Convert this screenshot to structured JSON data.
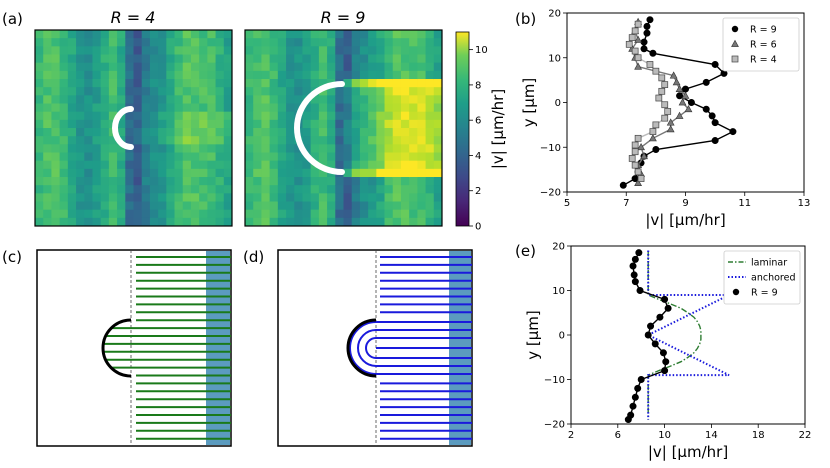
{
  "panel_labels": {
    "a": "(a)",
    "b": "(b)",
    "c": "(c)",
    "d": "(d)",
    "e": "(e)"
  },
  "heatmap_titles": {
    "left": "R = 4",
    "right": "R = 9"
  },
  "colorbar": {
    "label": "|v| [μm/hr]",
    "range": [
      0,
      11
    ],
    "ticks": [
      "0",
      "2",
      "4",
      "6",
      "8",
      "10"
    ],
    "colormap": "viridis"
  },
  "schematics": {
    "c": {
      "line_color": "#1a7a1a",
      "band_color": "#5b9bbf"
    },
    "d": {
      "line_color": "#1a1adc",
      "band_color": "#5b9bbf"
    }
  },
  "chart_data": [
    {
      "panel": "b",
      "type": "line",
      "xlabel": "|v| [μm/hr]",
      "ylabel": "y [μm]",
      "xlim": [
        5,
        13
      ],
      "ylim": [
        -20,
        20
      ],
      "xticks": [
        "5",
        "7",
        "9",
        "11",
        "13"
      ],
      "yticks": [
        "−20",
        "−10",
        "0",
        "10",
        "20"
      ],
      "legend_position": "top-right",
      "series": [
        {
          "name": "R = 9",
          "color": "#000000",
          "marker": "circle",
          "points": [
            [
              7.8,
              18.5
            ],
            [
              7.7,
              17.0
            ],
            [
              7.7,
              15.5
            ],
            [
              7.6,
              13.5
            ],
            [
              7.6,
              12.0
            ],
            [
              7.9,
              11.0
            ],
            [
              10.0,
              8.5
            ],
            [
              10.3,
              6.5
            ],
            [
              9.7,
              4.5
            ],
            [
              9.0,
              3.0
            ],
            [
              8.8,
              1.5
            ],
            [
              9.2,
              0.0
            ],
            [
              9.7,
              -1.5
            ],
            [
              9.9,
              -3.0
            ],
            [
              10.0,
              -4.5
            ],
            [
              10.6,
              -6.5
            ],
            [
              10.0,
              -8.5
            ],
            [
              8.0,
              -10.5
            ],
            [
              7.6,
              -12.0
            ],
            [
              7.5,
              -13.5
            ],
            [
              7.4,
              -15.5
            ],
            [
              7.3,
              -17.0
            ],
            [
              6.9,
              -18.5
            ]
          ]
        },
        {
          "name": "R = 6",
          "color": "#777777",
          "marker": "triangle",
          "points": [
            [
              7.4,
              18.0
            ],
            [
              7.3,
              16.0
            ],
            [
              7.4,
              14.0
            ],
            [
              7.2,
              12.0
            ],
            [
              7.3,
              10.0
            ],
            [
              7.4,
              8.0
            ],
            [
              8.6,
              6.0
            ],
            [
              8.7,
              4.5
            ],
            [
              8.8,
              3.0
            ],
            [
              9.0,
              1.5
            ],
            [
              8.9,
              0.0
            ],
            [
              9.1,
              -1.5
            ],
            [
              8.8,
              -3.0
            ],
            [
              8.5,
              -4.5
            ],
            [
              8.5,
              -6.0
            ],
            [
              7.9,
              -8.0
            ],
            [
              7.5,
              -10.0
            ],
            [
              7.6,
              -12.0
            ],
            [
              7.4,
              -14.0
            ],
            [
              7.5,
              -16.0
            ],
            [
              7.4,
              -18.0
            ]
          ]
        },
        {
          "name": "R = 4",
          "color": "#bbbbbb",
          "marker": "square",
          "points": [
            [
              7.4,
              17.5
            ],
            [
              7.3,
              16.0
            ],
            [
              7.2,
              14.5
            ],
            [
              7.1,
              13.0
            ],
            [
              7.3,
              11.5
            ],
            [
              7.4,
              10.0
            ],
            [
              7.8,
              8.5
            ],
            [
              8.0,
              7.0
            ],
            [
              8.2,
              5.5
            ],
            [
              8.3,
              4.0
            ],
            [
              8.2,
              2.5
            ],
            [
              8.1,
              1.0
            ],
            [
              8.3,
              -0.5
            ],
            [
              8.4,
              -2.0
            ],
            [
              8.3,
              -3.5
            ],
            [
              8.0,
              -5.0
            ],
            [
              7.9,
              -6.5
            ],
            [
              7.4,
              -8.0
            ],
            [
              7.3,
              -9.5
            ],
            [
              7.3,
              -11.0
            ],
            [
              7.2,
              -12.5
            ],
            [
              7.3,
              -14.0
            ],
            [
              7.4,
              -15.5
            ],
            [
              7.5,
              -17.0
            ]
          ]
        }
      ]
    },
    {
      "panel": "e",
      "type": "line",
      "xlabel": "|v| [μm/hr]",
      "ylabel": "y [μm]",
      "xlim": [
        2,
        22
      ],
      "ylim": [
        -20,
        20
      ],
      "xticks": [
        "2",
        "6",
        "10",
        "14",
        "18",
        "22"
      ],
      "yticks": [
        "−20",
        "−10",
        "0",
        "10",
        "20"
      ],
      "legend_position": "top-right",
      "series": [
        {
          "name": "laminar",
          "color": "#2e7d32",
          "style": "dash-dot",
          "points": [
            [
              8.6,
              19
            ],
            [
              8.6,
              9
            ],
            [
              9.5,
              8
            ],
            [
              10.5,
              7
            ],
            [
              11.4,
              6
            ],
            [
              12.0,
              5
            ],
            [
              12.5,
              4
            ],
            [
              12.8,
              3
            ],
            [
              13.0,
              2
            ],
            [
              13.1,
              1
            ],
            [
              13.1,
              0
            ],
            [
              13.1,
              -1
            ],
            [
              13.0,
              -2
            ],
            [
              12.8,
              -3
            ],
            [
              12.5,
              -4
            ],
            [
              12.0,
              -5
            ],
            [
              11.4,
              -6
            ],
            [
              10.5,
              -7
            ],
            [
              9.5,
              -8
            ],
            [
              8.6,
              -9
            ],
            [
              8.6,
              -19
            ]
          ]
        },
        {
          "name": "anchored",
          "color": "#1a1adc",
          "style": "dotted",
          "points": [
            [
              8.6,
              19
            ],
            [
              8.6,
              9
            ],
            [
              15.5,
              9
            ],
            [
              8.6,
              0
            ],
            [
              15.5,
              -9
            ],
            [
              8.6,
              -9
            ],
            [
              8.6,
              -19
            ]
          ]
        },
        {
          "name": "R = 9",
          "color": "#000000",
          "marker": "circle",
          "points": [
            [
              7.8,
              18.5
            ],
            [
              7.5,
              17.0
            ],
            [
              7.3,
              15.5
            ],
            [
              7.4,
              13.5
            ],
            [
              7.5,
              12.0
            ],
            [
              7.9,
              10.0
            ],
            [
              10.0,
              8.0
            ],
            [
              10.3,
              6.0
            ],
            [
              9.6,
              4.0
            ],
            [
              8.8,
              2.0
            ],
            [
              8.6,
              0.0
            ],
            [
              9.2,
              -2.0
            ],
            [
              9.9,
              -4.0
            ],
            [
              10.1,
              -6.0
            ],
            [
              10.0,
              -8.0
            ],
            [
              8.0,
              -10.0
            ],
            [
              7.7,
              -12.0
            ],
            [
              7.5,
              -14.0
            ],
            [
              7.3,
              -16.0
            ],
            [
              7.1,
              -18.0
            ],
            [
              6.9,
              -19.0
            ]
          ]
        }
      ]
    }
  ]
}
